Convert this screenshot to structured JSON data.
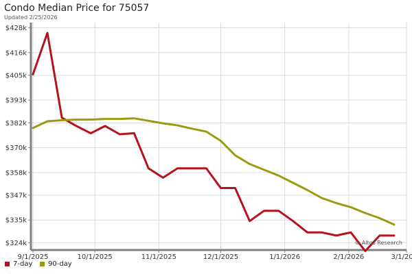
{
  "header": {
    "title": "Condo Median Price for 75057",
    "subtitle": "Updated 2/25/2026"
  },
  "watermark": "© Altos Research",
  "colors": {
    "seven_day": "#b5121b",
    "ninety_day": "#9b9b12",
    "grid": "#d9d9d9",
    "axis": "#808080"
  },
  "chart_data": {
    "type": "line",
    "title": "Condo Median Price for 75057",
    "subtitle": "Updated 2/25/2026",
    "xlabel": "",
    "ylabel": "",
    "x_range": [
      "2025-08-31",
      "2026-03-01"
    ],
    "y_range": [
      320500,
      430500
    ],
    "grid": true,
    "legend_position": "bottom-left",
    "x_ticks": [
      {
        "date": "2025-09-01",
        "label": "9/1/2025"
      },
      {
        "date": "2025-10-01",
        "label": "10/1/2025"
      },
      {
        "date": "2025-11-01",
        "label": "11/1/2025"
      },
      {
        "date": "2025-12-01",
        "label": "12/1/2025"
      },
      {
        "date": "2026-01-01",
        "label": "1/1/2026"
      },
      {
        "date": "2026-02-01",
        "label": "2/1/2026"
      },
      {
        "date": "2026-03-01",
        "label": "3/1/2026"
      }
    ],
    "y_ticks": [
      {
        "value": 324000,
        "label": "$324k"
      },
      {
        "value": 335000,
        "label": "$335k"
      },
      {
        "value": 347000,
        "label": "$347k"
      },
      {
        "value": 358000,
        "label": "$358k"
      },
      {
        "value": 370000,
        "label": "$370k"
      },
      {
        "value": 382000,
        "label": "$382k"
      },
      {
        "value": 393000,
        "label": "$393k"
      },
      {
        "value": 405000,
        "label": "$405k"
      },
      {
        "value": 416000,
        "label": "$416k"
      },
      {
        "value": 428000,
        "label": "$428k"
      }
    ],
    "series": [
      {
        "name": "7-day",
        "color": "#b5121b",
        "points": [
          {
            "x": "2025-09-01",
            "y": 405500
          },
          {
            "x": "2025-09-08",
            "y": 425500
          },
          {
            "x": "2025-09-15",
            "y": 384500
          },
          {
            "x": "2025-09-22",
            "y": 380500
          },
          {
            "x": "2025-09-29",
            "y": 377000
          },
          {
            "x": "2025-10-06",
            "y": 380500
          },
          {
            "x": "2025-10-13",
            "y": 376500
          },
          {
            "x": "2025-10-20",
            "y": 377000
          },
          {
            "x": "2025-10-27",
            "y": 360000
          },
          {
            "x": "2025-11-03",
            "y": 355500
          },
          {
            "x": "2025-11-10",
            "y": 360000
          },
          {
            "x": "2025-11-17",
            "y": 360000
          },
          {
            "x": "2025-11-24",
            "y": 360000
          },
          {
            "x": "2025-12-01",
            "y": 350500
          },
          {
            "x": "2025-12-08",
            "y": 350500
          },
          {
            "x": "2025-12-15",
            "y": 334500
          },
          {
            "x": "2025-12-22",
            "y": 339500
          },
          {
            "x": "2025-12-29",
            "y": 339500
          },
          {
            "x": "2026-01-05",
            "y": 334500
          },
          {
            "x": "2026-01-12",
            "y": 329000
          },
          {
            "x": "2026-01-19",
            "y": 329000
          },
          {
            "x": "2026-01-26",
            "y": 327500
          },
          {
            "x": "2026-02-02",
            "y": 329000
          },
          {
            "x": "2026-02-09",
            "y": 320000
          },
          {
            "x": "2026-02-16",
            "y": 327500
          },
          {
            "x": "2026-02-23",
            "y": 327500
          }
        ]
      },
      {
        "name": "90-day",
        "color": "#9b9b12",
        "points": [
          {
            "x": "2025-09-01",
            "y": 379500
          },
          {
            "x": "2025-09-08",
            "y": 382800
          },
          {
            "x": "2025-09-15",
            "y": 383300
          },
          {
            "x": "2025-09-22",
            "y": 383600
          },
          {
            "x": "2025-09-29",
            "y": 383600
          },
          {
            "x": "2025-10-06",
            "y": 383900
          },
          {
            "x": "2025-10-13",
            "y": 383900
          },
          {
            "x": "2025-10-20",
            "y": 384200
          },
          {
            "x": "2025-10-27",
            "y": 383000
          },
          {
            "x": "2025-11-03",
            "y": 381800
          },
          {
            "x": "2025-11-10",
            "y": 380800
          },
          {
            "x": "2025-11-17",
            "y": 379200
          },
          {
            "x": "2025-11-24",
            "y": 377800
          },
          {
            "x": "2025-12-01",
            "y": 373300
          },
          {
            "x": "2025-12-08",
            "y": 366300
          },
          {
            "x": "2025-12-15",
            "y": 362100
          },
          {
            "x": "2025-12-22",
            "y": 359300
          },
          {
            "x": "2025-12-29",
            "y": 356500
          },
          {
            "x": "2026-01-05",
            "y": 353000
          },
          {
            "x": "2026-01-12",
            "y": 349500
          },
          {
            "x": "2026-01-19",
            "y": 345600
          },
          {
            "x": "2026-01-26",
            "y": 343200
          },
          {
            "x": "2026-02-02",
            "y": 341200
          },
          {
            "x": "2026-02-09",
            "y": 338400
          },
          {
            "x": "2026-02-16",
            "y": 335900
          },
          {
            "x": "2026-02-23",
            "y": 332800
          }
        ]
      }
    ]
  },
  "legend": [
    {
      "label": "7-day",
      "color": "#b5121b"
    },
    {
      "label": "90-day",
      "color": "#9b9b12"
    }
  ]
}
